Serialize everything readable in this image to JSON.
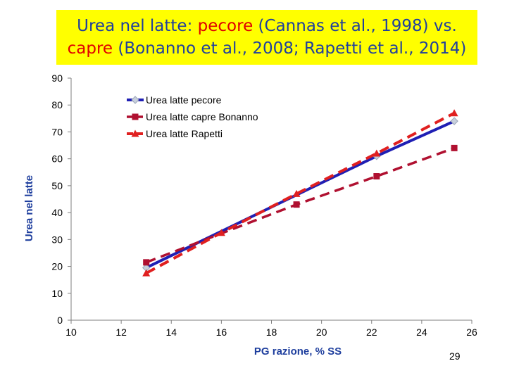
{
  "title": {
    "line1": [
      {
        "text": "Urea nel latte: ",
        "hl": false
      },
      {
        "text": "pecore",
        "hl": true
      },
      {
        "text": " (Cannas et al., 1998)  vs.",
        "hl": false
      }
    ],
    "line2": [
      {
        "text": "capre",
        "hl": true
      },
      {
        "text": " (Bonanno et al., 2008; Rapetti et al., 2014)",
        "hl": false
      }
    ]
  },
  "colors": {
    "title_bg": "#ffff00",
    "title_text": "#1f3f9e",
    "title_highlight": "#e00000",
    "pecore": "#1f1fb4",
    "bonanno": "#b01030",
    "rapetti": "#e02020",
    "axis_label": "#1f3f9e"
  },
  "page_number": "29",
  "chart_data": {
    "type": "line",
    "xlabel": "PG razione, % SS",
    "ylabel": "Urea nel latte",
    "xlim": [
      10,
      26
    ],
    "ylim": [
      0,
      90
    ],
    "xticks": [
      "10",
      "12",
      "14",
      "16",
      "18",
      "20",
      "22",
      "24",
      "26"
    ],
    "yticks": [
      "0",
      "10",
      "20",
      "30",
      "40",
      "50",
      "60",
      "70",
      "80",
      "90"
    ],
    "grid": false,
    "legend_position": "top-center",
    "series": [
      {
        "name": "Urea latte pecore",
        "style": "solid",
        "marker": "diamond",
        "x": [
          13.0,
          22.2,
          25.3
        ],
        "y": [
          19.5,
          61.0,
          74.0
        ]
      },
      {
        "name": "Urea latte capre Bonanno",
        "style": "dashed",
        "marker": "square",
        "x": [
          13.0,
          19.0,
          22.2,
          25.3
        ],
        "y": [
          21.5,
          43.0,
          53.5,
          64.0
        ]
      },
      {
        "name": "Urea latte Rapetti",
        "style": "dashed",
        "marker": "triangle",
        "x": [
          13.0,
          16.0,
          19.0,
          22.2,
          25.3
        ],
        "y": [
          17.5,
          32.5,
          47.0,
          62.0,
          77.0
        ]
      }
    ]
  }
}
